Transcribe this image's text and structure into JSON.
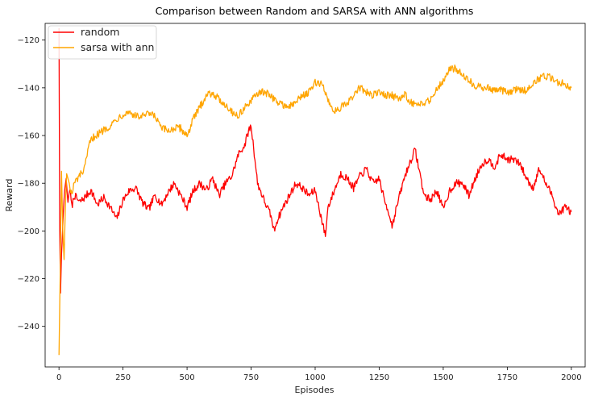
{
  "chart_data": {
    "type": "line",
    "title": "Comparison between Random and SARSA with ANN algorithms",
    "xlabel": "Episodes",
    "ylabel": "Reward",
    "xlim": [
      -54,
      2054
    ],
    "ylim": [
      -257,
      -113
    ],
    "xticks": [
      0,
      250,
      500,
      750,
      1000,
      1250,
      1500,
      1750,
      2000
    ],
    "yticks": [
      -240,
      -220,
      -200,
      -180,
      -160,
      -140,
      -120
    ],
    "grid": false,
    "legend_position": "top-left",
    "series": [
      {
        "name": "random",
        "color": "#ff0000",
        "points": [
          [
            0,
            -115
          ],
          [
            3,
            -200
          ],
          [
            6,
            -226
          ],
          [
            10,
            -210
          ],
          [
            14,
            -200
          ],
          [
            18,
            -190
          ],
          [
            22,
            -183
          ],
          [
            28,
            -178
          ],
          [
            35,
            -188
          ],
          [
            42,
            -182
          ],
          [
            50,
            -190
          ],
          [
            60,
            -185
          ],
          [
            80,
            -188
          ],
          [
            100,
            -186
          ],
          [
            125,
            -183
          ],
          [
            150,
            -189
          ],
          [
            175,
            -186
          ],
          [
            200,
            -190
          ],
          [
            225,
            -195
          ],
          [
            250,
            -187
          ],
          [
            275,
            -183
          ],
          [
            300,
            -182
          ],
          [
            325,
            -188
          ],
          [
            350,
            -191
          ],
          [
            375,
            -185
          ],
          [
            400,
            -189
          ],
          [
            425,
            -184
          ],
          [
            450,
            -180
          ],
          [
            475,
            -185
          ],
          [
            500,
            -190
          ],
          [
            525,
            -183
          ],
          [
            550,
            -180
          ],
          [
            575,
            -183
          ],
          [
            600,
            -178
          ],
          [
            625,
            -185
          ],
          [
            650,
            -180
          ],
          [
            675,
            -177
          ],
          [
            700,
            -168
          ],
          [
            725,
            -164
          ],
          [
            740,
            -158
          ],
          [
            750,
            -156
          ],
          [
            760,
            -165
          ],
          [
            775,
            -180
          ],
          [
            800,
            -187
          ],
          [
            825,
            -193
          ],
          [
            840,
            -200
          ],
          [
            850,
            -196
          ],
          [
            875,
            -190
          ],
          [
            900,
            -185
          ],
          [
            925,
            -180
          ],
          [
            950,
            -182
          ],
          [
            975,
            -185
          ],
          [
            1000,
            -183
          ],
          [
            1025,
            -195
          ],
          [
            1040,
            -202
          ],
          [
            1050,
            -190
          ],
          [
            1075,
            -183
          ],
          [
            1100,
            -176
          ],
          [
            1125,
            -178
          ],
          [
            1150,
            -182
          ],
          [
            1175,
            -177
          ],
          [
            1200,
            -174
          ],
          [
            1225,
            -180
          ],
          [
            1250,
            -178
          ],
          [
            1270,
            -187
          ],
          [
            1290,
            -193
          ],
          [
            1300,
            -198
          ],
          [
            1325,
            -187
          ],
          [
            1350,
            -177
          ],
          [
            1375,
            -170
          ],
          [
            1390,
            -166
          ],
          [
            1400,
            -171
          ],
          [
            1425,
            -185
          ],
          [
            1450,
            -187
          ],
          [
            1475,
            -183
          ],
          [
            1500,
            -191
          ],
          [
            1525,
            -183
          ],
          [
            1550,
            -180
          ],
          [
            1575,
            -180
          ],
          [
            1600,
            -185
          ],
          [
            1625,
            -178
          ],
          [
            1650,
            -172
          ],
          [
            1675,
            -170
          ],
          [
            1700,
            -173
          ],
          [
            1725,
            -168
          ],
          [
            1750,
            -170
          ],
          [
            1775,
            -170
          ],
          [
            1800,
            -172
          ],
          [
            1825,
            -178
          ],
          [
            1850,
            -182
          ],
          [
            1875,
            -174
          ],
          [
            1900,
            -180
          ],
          [
            1925,
            -185
          ],
          [
            1950,
            -193
          ],
          [
            1975,
            -190
          ],
          [
            2000,
            -192
          ]
        ]
      },
      {
        "name": "sarsa with ann",
        "color": "#ffa500",
        "points": [
          [
            0,
            -252
          ],
          [
            5,
            -215
          ],
          [
            10,
            -175
          ],
          [
            15,
            -200
          ],
          [
            20,
            -212
          ],
          [
            25,
            -190
          ],
          [
            30,
            -176
          ],
          [
            40,
            -180
          ],
          [
            50,
            -185
          ],
          [
            60,
            -180
          ],
          [
            80,
            -177
          ],
          [
            100,
            -174
          ],
          [
            120,
            -163
          ],
          [
            140,
            -160
          ],
          [
            160,
            -159
          ],
          [
            180,
            -157
          ],
          [
            200,
            -156
          ],
          [
            225,
            -153
          ],
          [
            250,
            -151
          ],
          [
            275,
            -150
          ],
          [
            300,
            -152
          ],
          [
            325,
            -152
          ],
          [
            350,
            -151
          ],
          [
            375,
            -152
          ],
          [
            400,
            -157
          ],
          [
            425,
            -158
          ],
          [
            450,
            -157
          ],
          [
            475,
            -157
          ],
          [
            500,
            -160
          ],
          [
            525,
            -153
          ],
          [
            550,
            -148
          ],
          [
            575,
            -143
          ],
          [
            600,
            -142
          ],
          [
            625,
            -145
          ],
          [
            650,
            -147
          ],
          [
            675,
            -150
          ],
          [
            700,
            -152
          ],
          [
            725,
            -148
          ],
          [
            750,
            -146
          ],
          [
            775,
            -142
          ],
          [
            800,
            -142
          ],
          [
            825,
            -143
          ],
          [
            850,
            -146
          ],
          [
            875,
            -147
          ],
          [
            900,
            -148
          ],
          [
            925,
            -146
          ],
          [
            950,
            -143
          ],
          [
            975,
            -142
          ],
          [
            1000,
            -138
          ],
          [
            1025,
            -138
          ],
          [
            1050,
            -145
          ],
          [
            1075,
            -150
          ],
          [
            1100,
            -148
          ],
          [
            1125,
            -147
          ],
          [
            1150,
            -143
          ],
          [
            1175,
            -140
          ],
          [
            1200,
            -142
          ],
          [
            1225,
            -143
          ],
          [
            1250,
            -142
          ],
          [
            1275,
            -143
          ],
          [
            1300,
            -143
          ],
          [
            1325,
            -145
          ],
          [
            1350,
            -143
          ],
          [
            1375,
            -146
          ],
          [
            1400,
            -148
          ],
          [
            1425,
            -146
          ],
          [
            1450,
            -145
          ],
          [
            1475,
            -140
          ],
          [
            1500,
            -137
          ],
          [
            1525,
            -132
          ],
          [
            1550,
            -132
          ],
          [
            1575,
            -134
          ],
          [
            1600,
            -137
          ],
          [
            1625,
            -139
          ],
          [
            1650,
            -140
          ],
          [
            1675,
            -140
          ],
          [
            1700,
            -141
          ],
          [
            1725,
            -141
          ],
          [
            1750,
            -142
          ],
          [
            1775,
            -141
          ],
          [
            1800,
            -141
          ],
          [
            1825,
            -141
          ],
          [
            1850,
            -138
          ],
          [
            1875,
            -136
          ],
          [
            1900,
            -135
          ],
          [
            1925,
            -136
          ],
          [
            1950,
            -138
          ],
          [
            1975,
            -138
          ],
          [
            2000,
            -140
          ]
        ]
      }
    ]
  }
}
